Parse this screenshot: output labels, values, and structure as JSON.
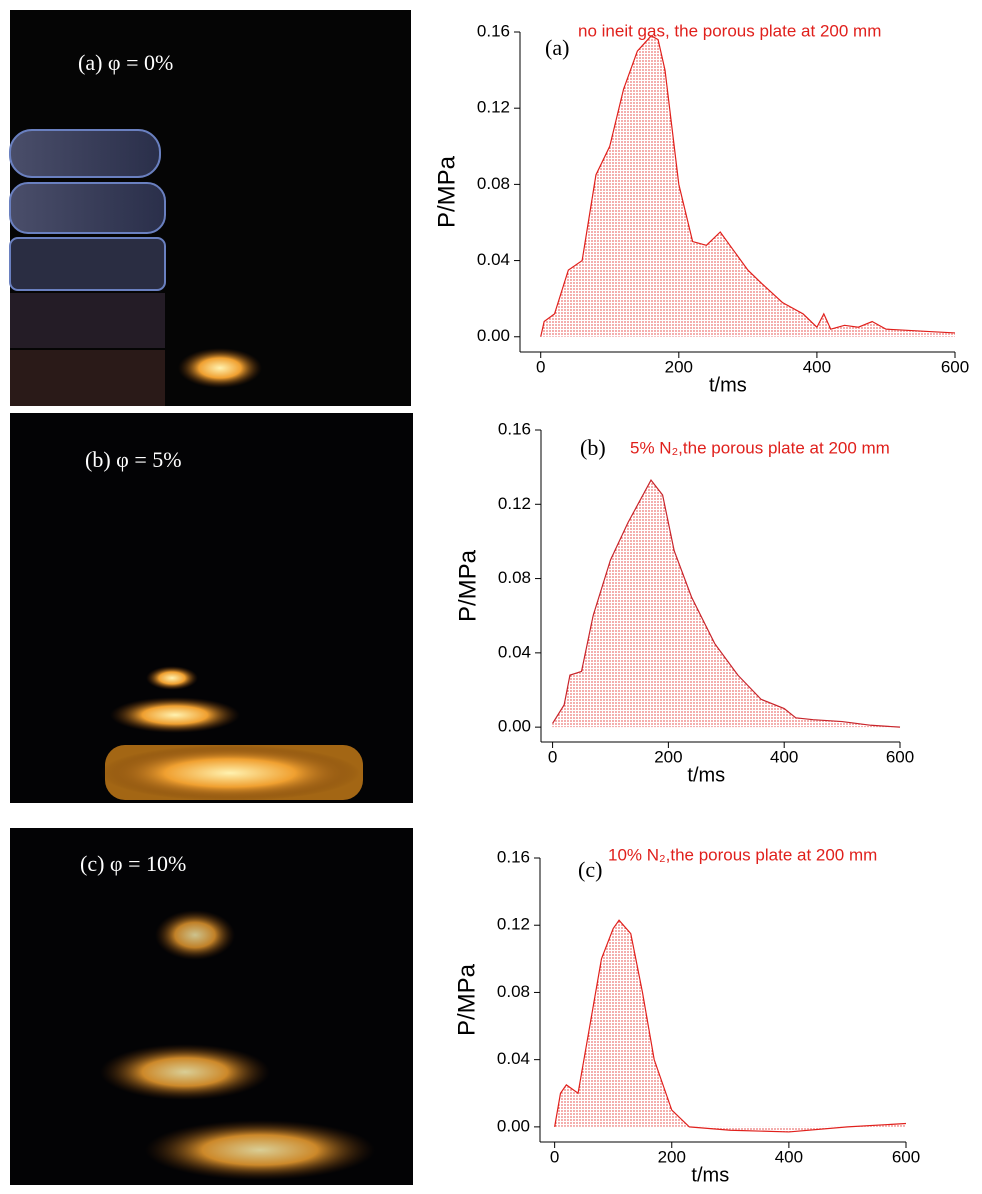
{
  "photos": [
    {
      "label": "(a)  φ = 0%"
    },
    {
      "label": "(b)  φ = 5%"
    },
    {
      "label": "(c)  φ = 10%"
    }
  ],
  "chart_data": [
    {
      "type": "line",
      "panel": "(a)",
      "annotation": "no ineit gas, the porous plate at 200 mm",
      "x_label": "t/ms",
      "y_label": "P/MPa",
      "color": "#e0201c",
      "x": [
        0,
        5,
        20,
        40,
        60,
        80,
        100,
        120,
        140,
        160,
        170,
        180,
        200,
        220,
        240,
        260,
        280,
        300,
        320,
        350,
        380,
        400,
        410,
        420,
        440,
        460,
        480,
        500,
        550,
        600
      ],
      "values": [
        0,
        0.008,
        0.012,
        0.035,
        0.04,
        0.085,
        0.1,
        0.13,
        0.15,
        0.158,
        0.156,
        0.14,
        0.08,
        0.05,
        0.048,
        0.055,
        0.045,
        0.035,
        0.028,
        0.018,
        0.012,
        0.005,
        0.012,
        0.004,
        0.006,
        0.005,
        0.008,
        0.004,
        0.003,
        0.002
      ],
      "xlim": [
        -30,
        600
      ],
      "ylim": [
        -0.008,
        0.16
      ],
      "xticks": [
        0,
        200,
        400,
        600
      ],
      "yticks": [
        {
          "value": 0,
          "label": "0.00"
        },
        0.04,
        0.08,
        0.12,
        0.16
      ]
    },
    {
      "type": "line",
      "panel": "(b)",
      "annotation": "5% N₂,the porous plate at 200 mm",
      "x_label": "t/ms",
      "y_label": "P/MPa",
      "color": "#c8242a",
      "x": [
        0,
        20,
        30,
        50,
        70,
        100,
        130,
        170,
        190,
        210,
        240,
        280,
        320,
        360,
        400,
        420,
        450,
        500,
        550,
        600
      ],
      "values": [
        0.002,
        0.012,
        0.028,
        0.03,
        0.06,
        0.09,
        0.11,
        0.133,
        0.125,
        0.095,
        0.07,
        0.045,
        0.028,
        0.015,
        0.01,
        0.005,
        0.004,
        0.003,
        0.001,
        0
      ],
      "xlim": [
        -20,
        600
      ],
      "ylim": [
        -0.008,
        0.16
      ],
      "xticks": [
        0,
        200,
        400,
        600
      ],
      "yticks": [
        {
          "value": 0,
          "label": "0.00"
        },
        0.04,
        0.08,
        0.12,
        0.16
      ]
    },
    {
      "type": "line",
      "panel": "(c)",
      "annotation": "10% N₂,the porous plate at 200 mm",
      "x_label": "t/ms",
      "y_label": "P/MPa",
      "color": "#e0201c",
      "x": [
        0,
        10,
        20,
        40,
        60,
        80,
        100,
        110,
        130,
        150,
        170,
        200,
        230,
        300,
        400,
        500,
        600
      ],
      "values": [
        0,
        0.02,
        0.025,
        0.02,
        0.06,
        0.1,
        0.118,
        0.123,
        0.115,
        0.08,
        0.04,
        0.01,
        0,
        -0.002,
        -0.003,
        0,
        0.002
      ],
      "xlim": [
        -25,
        600
      ],
      "ylim": [
        -0.009,
        0.16
      ],
      "xticks": [
        0,
        200,
        400,
        600
      ],
      "yticks": [
        {
          "value": 0,
          "label": "0.00"
        },
        0.04,
        0.08,
        0.12,
        0.16
      ]
    }
  ]
}
